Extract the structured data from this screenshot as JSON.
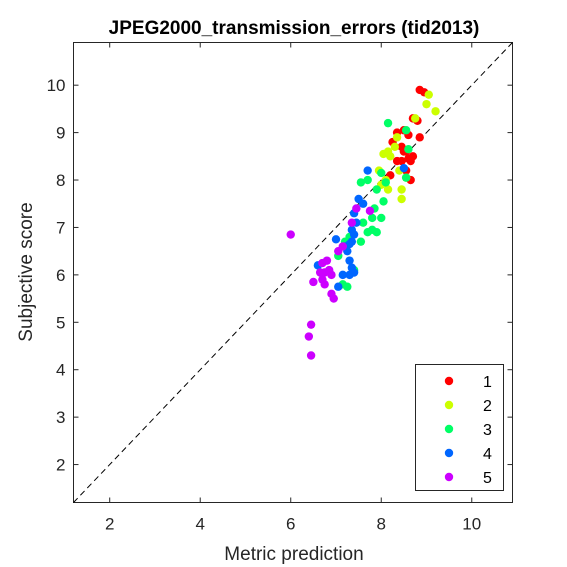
{
  "chart_data": {
    "type": "scatter",
    "title": "JPEG2000_transmission_errors (tid2013)",
    "xlabel": "Metric prediction",
    "ylabel": "Subjective score",
    "xlim": [
      1.2,
      10.9
    ],
    "ylim": [
      1.2,
      10.9
    ],
    "xticks": [
      2,
      4,
      6,
      8,
      10
    ],
    "yticks": [
      2,
      3,
      4,
      5,
      6,
      7,
      8,
      9,
      10
    ],
    "grid": false,
    "reference_line": "y = x (dashed)",
    "legend_position": "bottom-right",
    "series": [
      {
        "name": "1",
        "color": "#ff0000",
        "points": [
          [
            8.85,
            9.9
          ],
          [
            8.95,
            9.85
          ],
          [
            8.7,
            9.3
          ],
          [
            8.8,
            9.25
          ],
          [
            8.35,
            9.0
          ],
          [
            8.5,
            9.05
          ],
          [
            8.6,
            8.95
          ],
          [
            8.85,
            8.9
          ],
          [
            8.25,
            8.8
          ],
          [
            8.45,
            8.7
          ],
          [
            8.55,
            8.6
          ],
          [
            8.7,
            8.5
          ],
          [
            8.6,
            8.45
          ],
          [
            8.35,
            8.4
          ],
          [
            8.45,
            8.4
          ],
          [
            8.65,
            8.4
          ],
          [
            8.55,
            8.2
          ],
          [
            8.65,
            8.0
          ],
          [
            8.2,
            8.1
          ],
          [
            8.5,
            8.6
          ]
        ]
      },
      {
        "name": "2",
        "color": "#ccff00",
        "points": [
          [
            9.05,
            9.8
          ],
          [
            9.0,
            9.6
          ],
          [
            9.2,
            9.45
          ],
          [
            8.75,
            9.3
          ],
          [
            8.35,
            8.9
          ],
          [
            8.15,
            8.6
          ],
          [
            8.3,
            8.7
          ],
          [
            8.05,
            8.55
          ],
          [
            8.2,
            8.5
          ],
          [
            7.95,
            8.2
          ],
          [
            8.1,
            8.0
          ],
          [
            8.0,
            7.9
          ],
          [
            8.15,
            7.8
          ],
          [
            8.4,
            8.2
          ],
          [
            8.55,
            8.05
          ],
          [
            8.45,
            7.8
          ],
          [
            8.45,
            7.6
          ]
        ]
      },
      {
        "name": "3",
        "color": "#00ff66",
        "points": [
          [
            8.15,
            9.2
          ],
          [
            8.55,
            9.05
          ],
          [
            8.6,
            8.65
          ],
          [
            8.0,
            8.15
          ],
          [
            7.7,
            8.0
          ],
          [
            7.55,
            7.95
          ],
          [
            8.1,
            7.95
          ],
          [
            7.9,
            7.8
          ],
          [
            8.05,
            7.55
          ],
          [
            7.85,
            7.4
          ],
          [
            7.8,
            7.2
          ],
          [
            8.0,
            7.2
          ],
          [
            7.6,
            7.1
          ],
          [
            7.8,
            6.95
          ],
          [
            7.7,
            6.9
          ],
          [
            7.9,
            6.9
          ],
          [
            7.3,
            6.8
          ],
          [
            7.55,
            6.7
          ],
          [
            7.2,
            6.7
          ],
          [
            7.05,
            6.4
          ],
          [
            7.4,
            6.1
          ],
          [
            7.15,
            5.8
          ],
          [
            7.25,
            5.75
          ],
          [
            8.55,
            8.05
          ]
        ]
      },
      {
        "name": "4",
        "color": "#0066ff",
        "points": [
          [
            7.7,
            8.2
          ],
          [
            7.5,
            7.6
          ],
          [
            7.6,
            7.5
          ],
          [
            7.4,
            7.3
          ],
          [
            7.45,
            7.1
          ],
          [
            7.35,
            6.95
          ],
          [
            7.4,
            6.85
          ],
          [
            7.35,
            6.7
          ],
          [
            7.3,
            6.65
          ],
          [
            7.0,
            6.75
          ],
          [
            7.2,
            6.6
          ],
          [
            7.25,
            6.5
          ],
          [
            7.3,
            6.3
          ],
          [
            7.35,
            6.15
          ],
          [
            7.4,
            6.05
          ],
          [
            7.15,
            6.0
          ],
          [
            7.3,
            6.0
          ],
          [
            7.05,
            5.75
          ],
          [
            6.6,
            6.2
          ],
          [
            8.5,
            8.25
          ]
        ]
      },
      {
        "name": "5",
        "color": "#cc00ff",
        "points": [
          [
            6.0,
            6.85
          ],
          [
            7.45,
            7.4
          ],
          [
            7.75,
            7.35
          ],
          [
            7.35,
            7.1
          ],
          [
            7.15,
            6.6
          ],
          [
            7.05,
            6.5
          ],
          [
            6.8,
            6.3
          ],
          [
            6.7,
            6.25
          ],
          [
            6.85,
            6.1
          ],
          [
            6.65,
            6.05
          ],
          [
            6.75,
            6.05
          ],
          [
            6.9,
            6.0
          ],
          [
            6.7,
            5.9
          ],
          [
            6.5,
            5.85
          ],
          [
            6.75,
            5.8
          ],
          [
            6.9,
            5.6
          ],
          [
            6.95,
            5.5
          ],
          [
            6.45,
            4.95
          ],
          [
            6.4,
            4.7
          ],
          [
            6.45,
            4.3
          ]
        ]
      }
    ]
  }
}
